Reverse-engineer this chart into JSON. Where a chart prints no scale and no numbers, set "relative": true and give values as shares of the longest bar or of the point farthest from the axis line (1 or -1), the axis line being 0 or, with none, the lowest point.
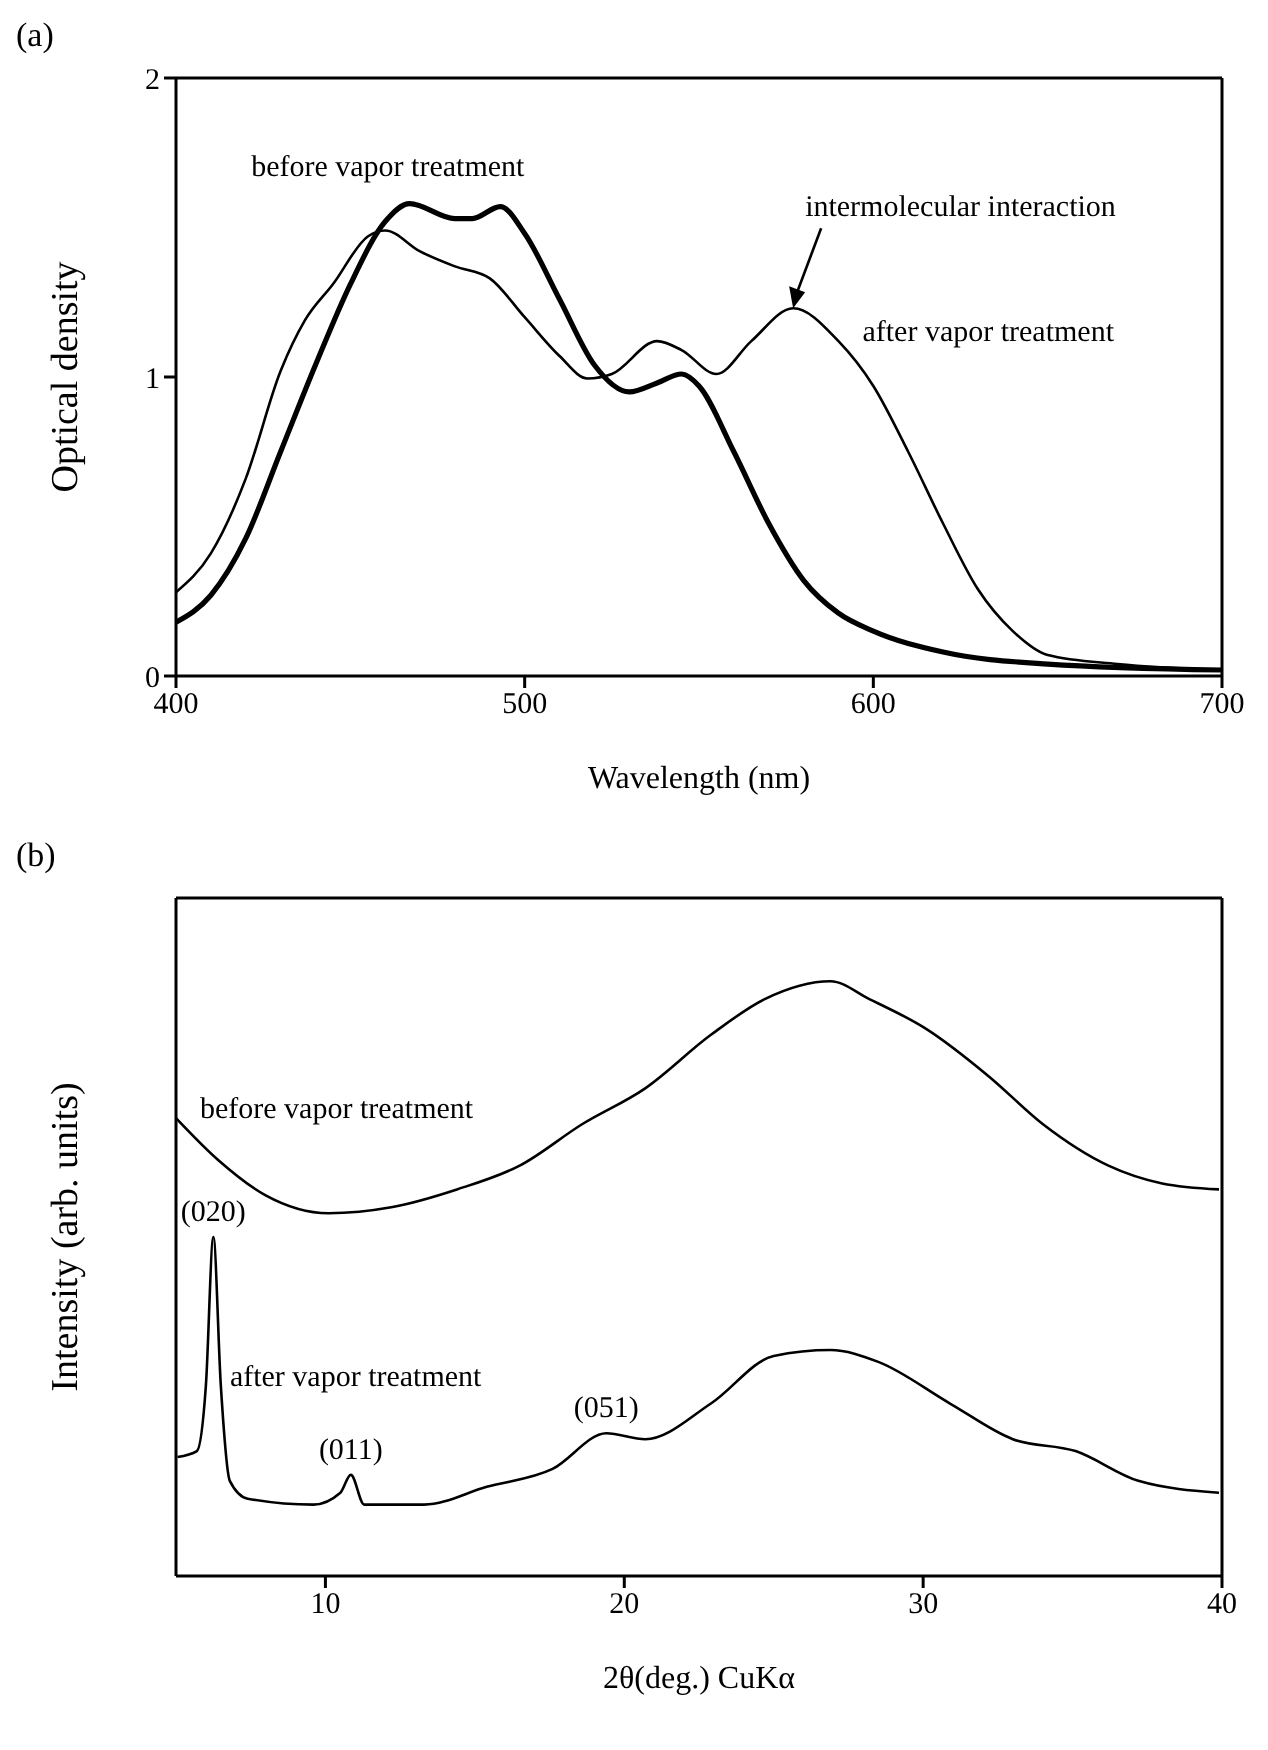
{
  "chart_data": [
    {
      "type": "line",
      "title": "(a)",
      "xlabel": "Wavelength (nm)",
      "ylabel": "Optical density",
      "xlim": [
        400,
        700
      ],
      "xticks": [
        400,
        500,
        600,
        700
      ],
      "ylim": [
        0,
        2
      ],
      "yticks": [
        0,
        1,
        2
      ],
      "grid": false,
      "legend": false,
      "marker": "none",
      "line_style": "solid",
      "annotations": [
        {
          "text": "intermolecular interaction",
          "x": 577,
          "y": 1.23
        }
      ],
      "series": [
        {
          "name": "after vapor treatment",
          "color": "#000000",
          "x": [
            400,
            410,
            420,
            430,
            437,
            445,
            455,
            460,
            470,
            480,
            490,
            500,
            510,
            518,
            525,
            538,
            545,
            555,
            565,
            577,
            590,
            600,
            610,
            620,
            630,
            640,
            650,
            670,
            700
          ],
          "values": [
            0.28,
            0.41,
            0.66,
            1.02,
            1.19,
            1.31,
            1.47,
            1.49,
            1.42,
            1.37,
            1.33,
            1.2,
            1.07,
            0.995,
            1.01,
            1.12,
            1.09,
            1.01,
            1.12,
            1.23,
            1.12,
            0.97,
            0.75,
            0.51,
            0.29,
            0.15,
            0.07,
            0.04,
            0.02
          ]
        },
        {
          "name": "before vapor treatment",
          "color": "#000000",
          "x": [
            400,
            410,
            420,
            430,
            440,
            450,
            460,
            467,
            480,
            485,
            493,
            500,
            510,
            520,
            530,
            538,
            545,
            550,
            560,
            570,
            580,
            590,
            600,
            620,
            650,
            700
          ],
          "values": [
            0.18,
            0.27,
            0.46,
            0.75,
            1.04,
            1.31,
            1.52,
            1.58,
            1.53,
            1.53,
            1.57,
            1.48,
            1.26,
            1.04,
            0.95,
            0.98,
            1.01,
            0.97,
            0.75,
            0.51,
            0.32,
            0.21,
            0.15,
            0.08,
            0.04,
            0.02
          ]
        }
      ]
    },
    {
      "type": "line",
      "title": "(b)",
      "xlabel": "2θ(deg.) CuKα",
      "ylabel": "Intensity (arb. units)",
      "xlim": [
        5,
        40
      ],
      "xticks": [
        10,
        20,
        30,
        40
      ],
      "relative": true,
      "tick_labels": "x",
      "grid": false,
      "legend": false,
      "marker": "none",
      "line_style": "solid",
      "annotations": [
        {
          "text": "(020)",
          "x": 6.25,
          "y": 0.57
        },
        {
          "text": "(011)",
          "x": 10.85,
          "y": 0.17
        },
        {
          "text": "(051)",
          "x": 19.4,
          "y": 0.24
        }
      ],
      "series": [
        {
          "name": "before vapor treatment",
          "color": "#000000",
          "x": [
            5,
            6.4,
            8,
            10.1,
            12.2,
            14.4,
            16.5,
            18.6,
            20.7,
            22.9,
            24.7,
            26.9,
            28.2,
            30.1,
            32.2,
            34,
            36.2,
            38,
            39.9
          ],
          "values": [
            0.77,
            0.7,
            0.64,
            0.61,
            0.62,
            0.65,
            0.69,
            0.76,
            0.82,
            0.91,
            0.97,
            1,
            0.97,
            0.92,
            0.84,
            0.76,
            0.69,
            0.66,
            0.65
          ]
        },
        {
          "name": "after vapor treatment",
          "color": "#000000",
          "x": [
            5.05,
            5.7,
            6,
            6.25,
            6.5,
            6.8,
            7.4,
            9.6,
            10.5,
            10.85,
            11.3,
            13.3,
            15.4,
            17.6,
            19.4,
            20.7,
            22.9,
            25,
            26.9,
            28.5,
            30.9,
            33,
            35.1,
            37.2,
            39.9
          ],
          "values": [
            0.2,
            0.21,
            0.32,
            0.57,
            0.32,
            0.16,
            0.13,
            0.12,
            0.14,
            0.17,
            0.12,
            0.12,
            0.15,
            0.18,
            0.24,
            0.23,
            0.29,
            0.37,
            0.38,
            0.36,
            0.29,
            0.23,
            0.21,
            0.16,
            0.14
          ]
        }
      ]
    }
  ]
}
